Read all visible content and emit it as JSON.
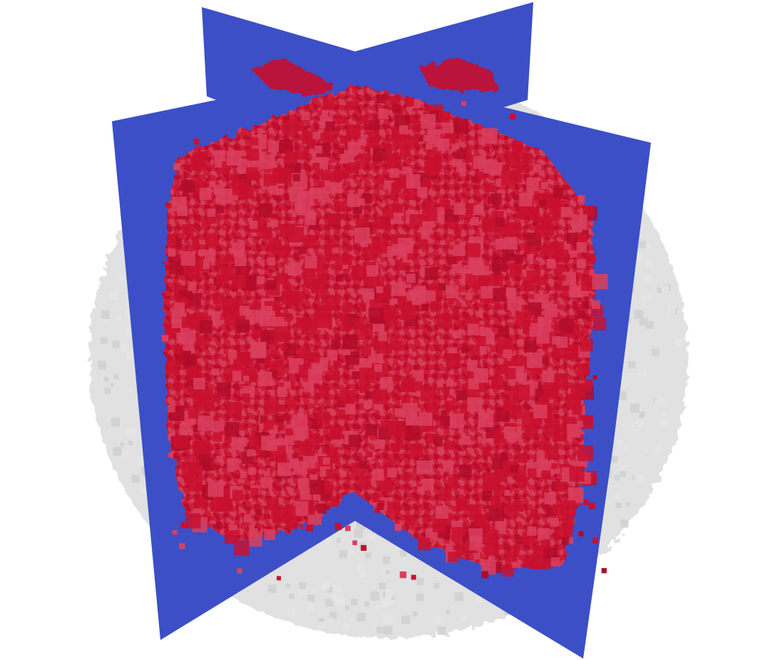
{
  "scene": {
    "kind": "3D volume rendering with two orthogonal slice planes",
    "background_color": "#ffffff",
    "colors": {
      "slice_plane": "#3c4fc7",
      "red_voxels": "#c8102e",
      "red_voxels_light": "#d9405e",
      "translucent_volume": "#d6d6d6"
    }
  }
}
